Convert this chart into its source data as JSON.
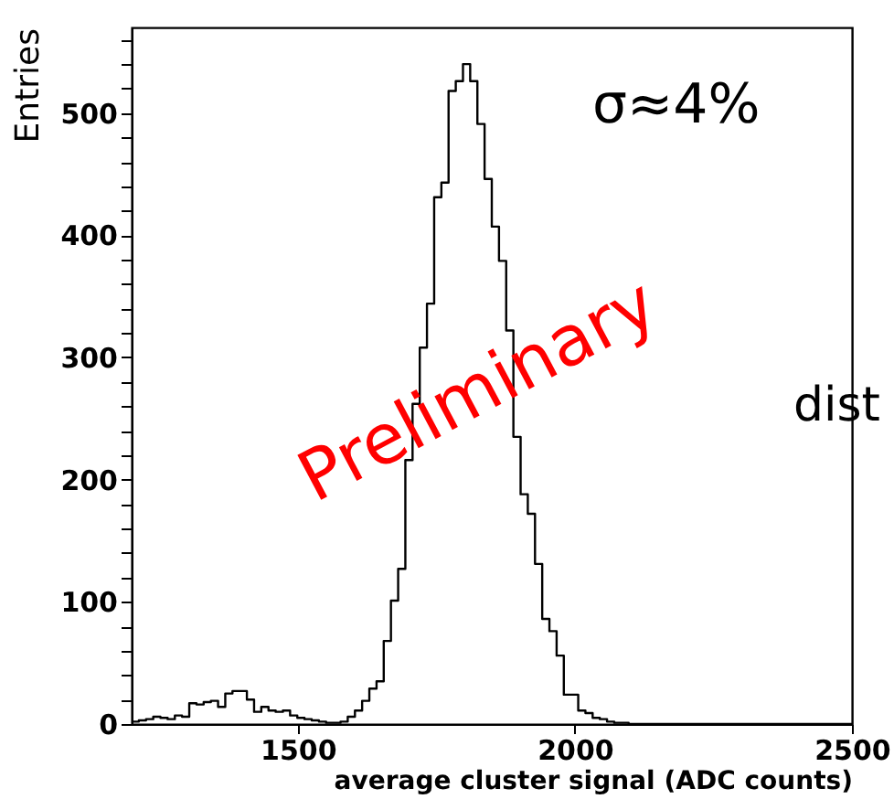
{
  "chart_data": {
    "type": "histogram",
    "xlabel": "average cluster signal (ADC counts)",
    "ylabel": "Entries",
    "bins": [
      1200,
      1213,
      1226,
      1239,
      1252,
      1265,
      1278,
      1291,
      1304,
      1317,
      1330,
      1343,
      1356,
      1369,
      1382,
      1395,
      1408,
      1421,
      1434,
      1447,
      1460,
      1473,
      1486,
      1499,
      1512,
      1525,
      1538,
      1551,
      1564,
      1577,
      1590,
      1603,
      1616,
      1629,
      1642,
      1655,
      1668,
      1681,
      1694,
      1707,
      1720,
      1733,
      1746,
      1759,
      1772,
      1785,
      1798,
      1811,
      1824,
      1837,
      1850,
      1863,
      1876,
      1889,
      1902,
      1915,
      1928,
      1941,
      1954,
      1967,
      1980,
      1993,
      2006,
      2019,
      2032,
      2045,
      2058,
      2071,
      2084,
      2097,
      2110,
      2123,
      2136,
      2149,
      2162,
      2175,
      2188,
      2201,
      2214,
      2227,
      2240,
      2253,
      2266,
      2279,
      2292,
      2305,
      2318,
      2331,
      2344,
      2357,
      2370,
      2383,
      2396,
      2409,
      2422,
      2435,
      2448,
      2461,
      2474,
      2487,
      2500
    ],
    "values": [
      2,
      3,
      4,
      6,
      5,
      4,
      7,
      6,
      17,
      16,
      18,
      19,
      14,
      25,
      27,
      27,
      20,
      10,
      14,
      11,
      10,
      11,
      7,
      5,
      4,
      3,
      2,
      1,
      1,
      2,
      6,
      11,
      19,
      29,
      35,
      68,
      101,
      127,
      216,
      262,
      308,
      344,
      431,
      443,
      518,
      526,
      540,
      526,
      491,
      446,
      407,
      379,
      322,
      235,
      188,
      172,
      131,
      86,
      76,
      56,
      24,
      24,
      11,
      9,
      5,
      4,
      2,
      1,
      1,
      0,
      0,
      0,
      0,
      0,
      0,
      0,
      0,
      0,
      0,
      0,
      0,
      0,
      0,
      0,
      0,
      0,
      0,
      0,
      0,
      0,
      0,
      0,
      0,
      0,
      0,
      0,
      0,
      0,
      0,
      0
    ],
    "color": "#000000",
    "xlim": [
      1200,
      2500
    ],
    "xticks": [
      1500,
      2000,
      2500
    ],
    "ylim": [
      0,
      570
    ],
    "yticks": [
      0,
      {
        "value": 20,
        "label": null
      },
      {
        "value": 40,
        "label": null
      },
      {
        "value": 60,
        "label": null
      },
      {
        "value": 80,
        "label": null
      },
      100,
      {
        "value": 120,
        "label": null
      },
      {
        "value": 140,
        "label": null
      },
      {
        "value": 160,
        "label": null
      },
      {
        "value": 180,
        "label": null
      },
      200,
      {
        "value": 220,
        "label": null
      },
      {
        "value": 240,
        "label": null
      },
      {
        "value": 260,
        "label": null
      },
      {
        "value": 280,
        "label": null
      },
      300,
      {
        "value": 320,
        "label": null
      },
      {
        "value": 340,
        "label": null
      },
      {
        "value": 360,
        "label": null
      },
      {
        "value": 380,
        "label": null
      },
      400,
      {
        "value": 420,
        "label": null
      },
      {
        "value": 440,
        "label": null
      },
      {
        "value": 460,
        "label": null
      },
      {
        "value": 480,
        "label": null
      },
      500,
      {
        "value": 520,
        "label": null
      },
      {
        "value": 540,
        "label": null
      },
      {
        "value": 560,
        "label": null
      }
    ],
    "annotations": [
      "σ≈4%",
      "Preliminary",
      "dist"
    ],
    "grid": false
  }
}
